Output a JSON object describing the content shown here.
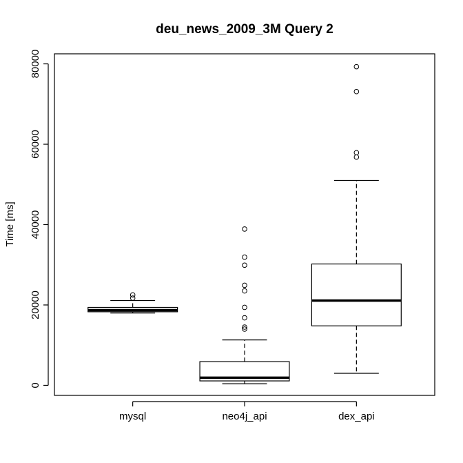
{
  "chart_data": {
    "type": "boxplot",
    "title": "deu_news_2009_3M Query 2",
    "xlabel": "",
    "ylabel": "Time [ms]",
    "ylim": [
      -2500,
      82500
    ],
    "yticks": [
      "0",
      "20000",
      "40000",
      "60000",
      "80000"
    ],
    "grid": false,
    "legend": "none",
    "series": [
      {
        "name": "mysql",
        "whisker_low": 18000,
        "q1": 18300,
        "median": 18700,
        "q3": 19400,
        "whisker_high": 21100,
        "outliers": [
          21700,
          22500
        ]
      },
      {
        "name": "neo4j_api",
        "whisker_low": 400,
        "q1": 1100,
        "median": 1900,
        "q3": 5900,
        "whisker_high": 11300,
        "outliers": [
          14000,
          14500,
          16800,
          19400,
          23500,
          24900,
          29900,
          31900,
          38900
        ]
      },
      {
        "name": "dex_api",
        "whisker_low": 3000,
        "q1": 14800,
        "median": 21100,
        "q3": 30200,
        "whisker_high": 51000,
        "outliers": [
          56800,
          57900,
          73100,
          79300
        ]
      }
    ]
  }
}
